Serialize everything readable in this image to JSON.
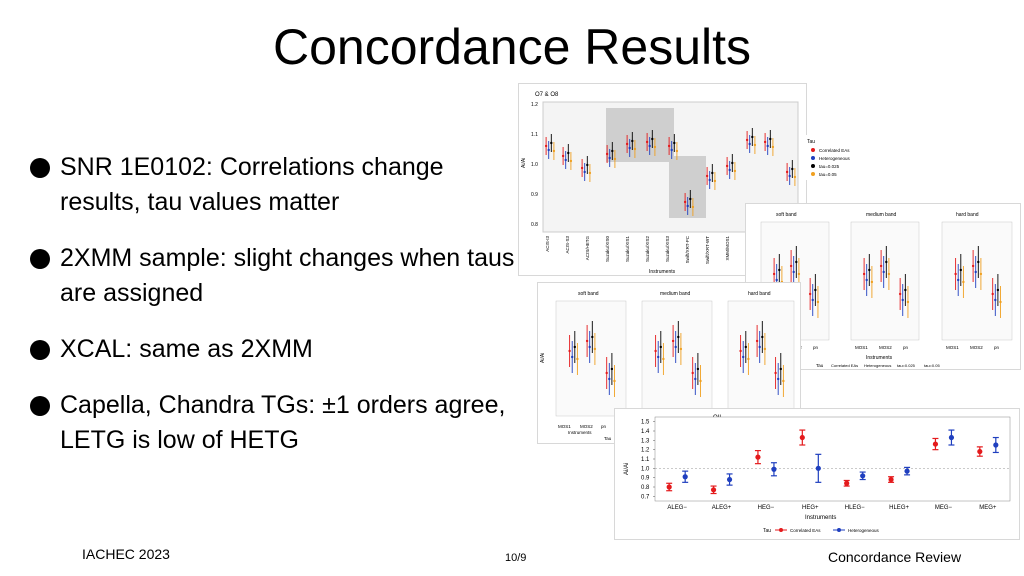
{
  "slide": {
    "title": "Concordance Results",
    "bullets": [
      "SNR 1E0102: Correlations change results, tau values matter",
      "2XMM sample: slight changes when taus are assigned",
      "XCAL: same as 2XMM",
      "Capella, Chandra TGs: ±1 orders agree, LETG is low of HETG"
    ],
    "footer_left": "IACHEC 2023",
    "footer_center": "10/9",
    "footer_right": "Concordance Review"
  },
  "figures": {
    "top": {
      "panel_title": "O7 & O8",
      "xlabel": "Instruments",
      "ylabel": "Ai/Ai",
      "yticks": [
        "1.2",
        "1.1",
        "1.0",
        "0.9",
        "0.8"
      ],
      "categories": [
        "ACIS-I3",
        "ACIS-S3",
        "ACIS/HETG",
        "Suzaku/XIS0",
        "Suzaku/XIS1",
        "Suzaku/XIS2",
        "Suzaku/XIS3",
        "Swift/XRT-PC",
        "Swift/XRT-WT",
        "XMM/MOS1"
      ],
      "legend_title": "Tau",
      "legend": [
        "Correlated EAs",
        "Heterogeneous",
        "tau=0.025",
        "tau=0.05"
      ]
    },
    "xmm_right": {
      "panels": [
        "soft band",
        "medium band",
        "hard band"
      ],
      "xticks": [
        "MOS1",
        "MOS2",
        "pn"
      ],
      "xlabel": "Instruments",
      "legend_label": "Tau",
      "legend": [
        "Correlated EAs",
        "Heterogeneous",
        "tau=0.025",
        "tau=0.05"
      ]
    },
    "xmm_left": {
      "panels": [
        "soft band",
        "medium band",
        "hard band"
      ],
      "xticks": [
        "MOS1",
        "MOS2",
        "pn"
      ],
      "xlabel": "Instruments",
      "ylabel": "Ai/Ai",
      "legend_label": "Tau"
    },
    "capella": {
      "panel_title": "OII",
      "xlabel": "Instruments",
      "ylabel": "Ai/Ai",
      "yticks": [
        "1.5",
        "1.4",
        "1.3",
        "1.2",
        "1.1",
        "1.0",
        "0.9",
        "0.8",
        "0.7"
      ],
      "legend_title": "Tau",
      "legend": [
        "Correlated EAs",
        "Heterogeneous"
      ]
    }
  },
  "chart_data": {
    "type": "scatter",
    "title": "OII",
    "xlabel": "Instruments",
    "ylabel": "Ai/Ai",
    "ylim": [
      0.65,
      1.55
    ],
    "categories": [
      "ALEG−",
      "ALEG+",
      "HEG−",
      "HEG+",
      "HLEG−",
      "HLEG+",
      "MEG−",
      "MEG+"
    ],
    "series": [
      {
        "name": "Correlated EAs",
        "color": "#e41a1c",
        "values": [
          0.8,
          0.77,
          1.12,
          1.33,
          0.84,
          0.88,
          1.26,
          1.18
        ],
        "err": [
          0.04,
          0.04,
          0.07,
          0.08,
          0.03,
          0.03,
          0.06,
          0.05
        ]
      },
      {
        "name": "Heterogeneous",
        "color": "#1f3fbf",
        "values": [
          0.91,
          0.88,
          0.99,
          1.0,
          0.92,
          0.97,
          1.33,
          1.25
        ],
        "err": [
          0.06,
          0.06,
          0.07,
          0.15,
          0.04,
          0.04,
          0.08,
          0.08
        ]
      }
    ]
  }
}
